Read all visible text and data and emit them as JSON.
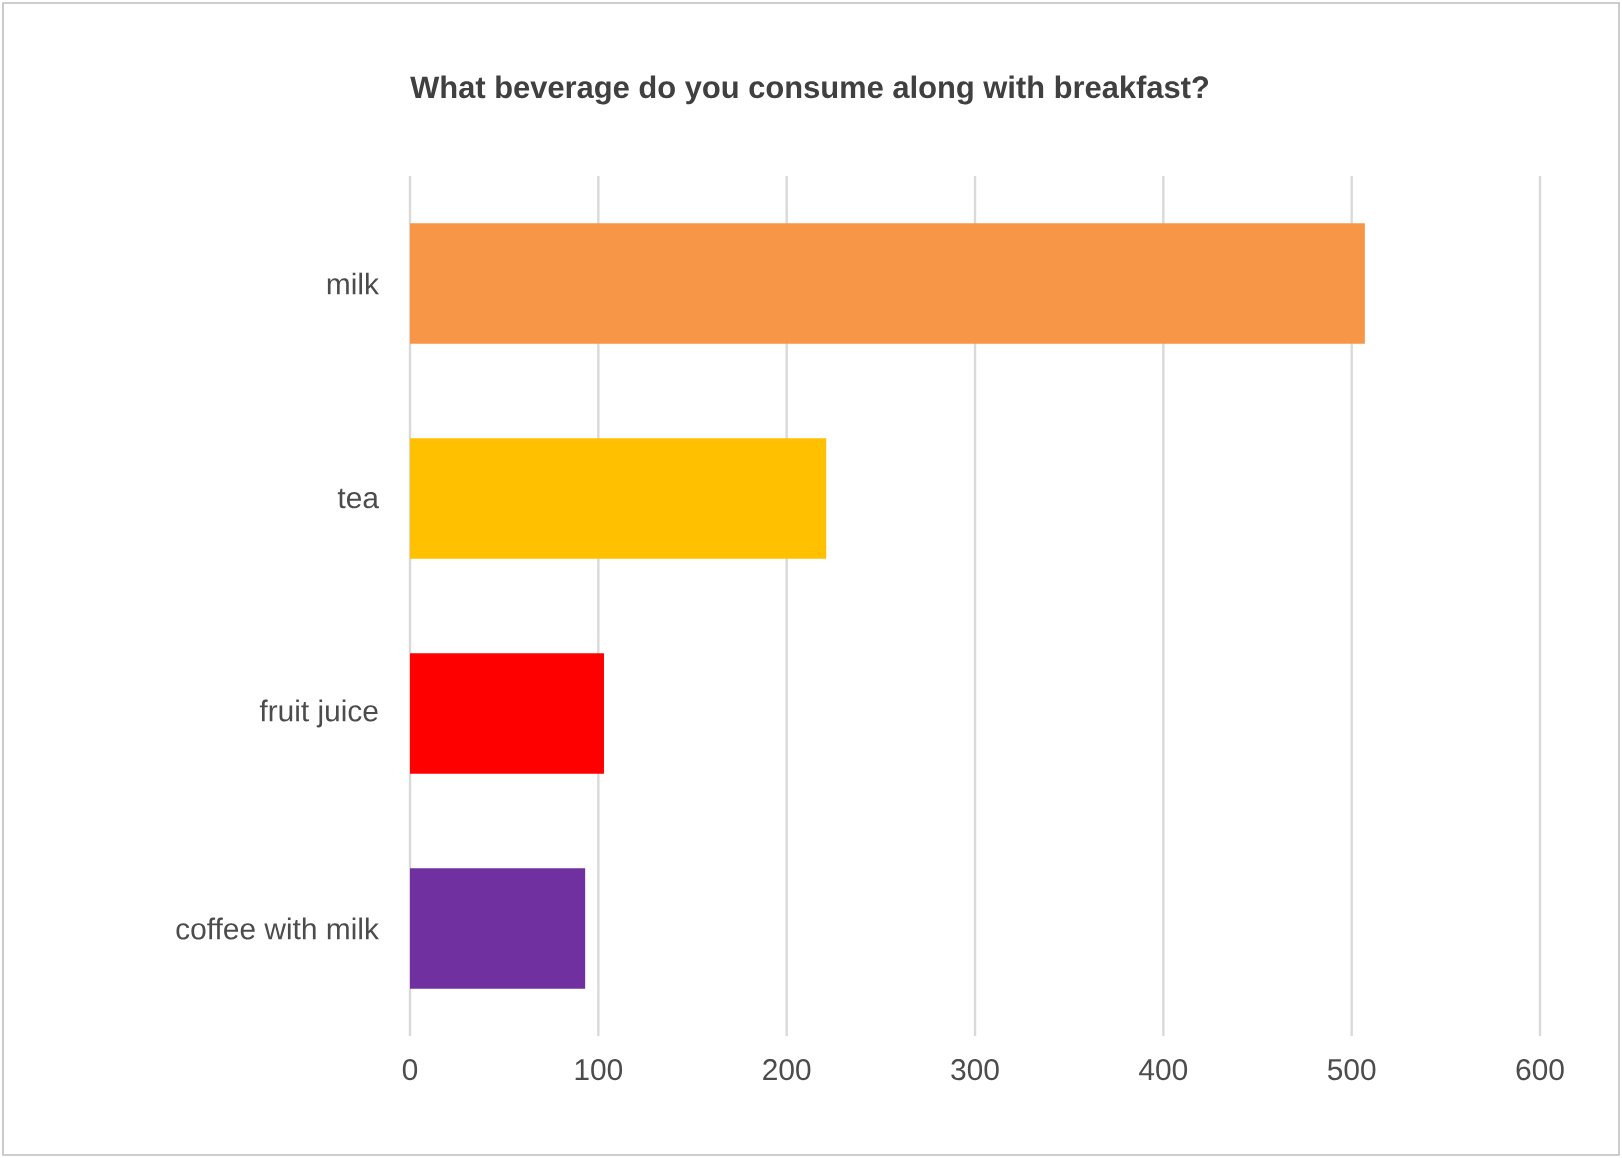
{
  "chart_data": {
    "type": "bar",
    "orientation": "horizontal",
    "title": "What beverage do you consume along with breakfast?",
    "categories": [
      "milk",
      "tea",
      "fruit juice",
      "coffee with milk"
    ],
    "values": [
      507,
      221,
      103,
      93
    ],
    "colors": [
      "#f79646",
      "#ffc000",
      "#ff0000",
      "#7030a0"
    ],
    "xlim": [
      0,
      600
    ],
    "xticks": [
      0,
      100,
      200,
      300,
      400,
      500,
      600
    ],
    "grid": "x"
  }
}
